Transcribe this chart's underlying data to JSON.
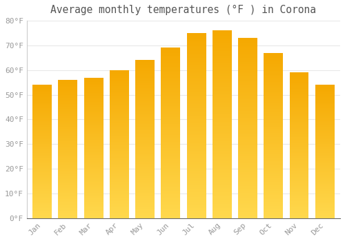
{
  "title": "Average monthly temperatures (°F ) in Corona",
  "months": [
    "Jan",
    "Feb",
    "Mar",
    "Apr",
    "May",
    "Jun",
    "Jul",
    "Aug",
    "Sep",
    "Oct",
    "Nov",
    "Dec"
  ],
  "values": [
    54,
    56,
    57,
    60,
    64,
    69,
    75,
    76,
    73,
    67,
    59,
    54
  ],
  "ylim": [
    0,
    80
  ],
  "yticks": [
    0,
    10,
    20,
    30,
    40,
    50,
    60,
    70,
    80
  ],
  "ytick_labels": [
    "0°F",
    "10°F",
    "20°F",
    "30°F",
    "40°F",
    "50°F",
    "60°F",
    "70°F",
    "80°F"
  ],
  "bar_color_top": "#F5A800",
  "bar_color_bottom": "#FFD84D",
  "background_color": "#ffffff",
  "plot_bg_color": "#ffffff",
  "grid_color": "#e8e8e8",
  "title_fontsize": 10.5,
  "tick_fontsize": 8,
  "tick_color": "#999999",
  "title_color": "#555555"
}
